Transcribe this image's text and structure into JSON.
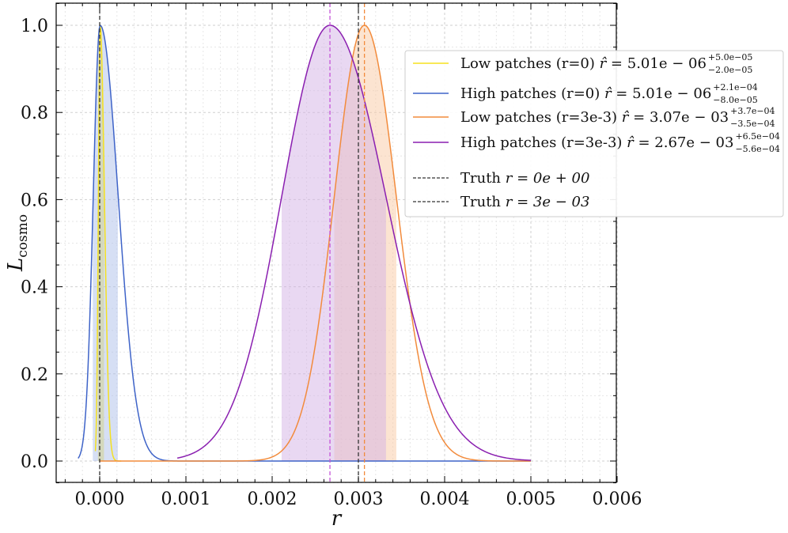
{
  "chart_data": {
    "type": "line",
    "title": "",
    "xlabel": "r",
    "ylabel_main": "L",
    "ylabel_sub": "cosmo",
    "xlim": [
      -0.0005,
      0.006
    ],
    "ylim": [
      -0.05,
      1.05
    ],
    "xticks": [
      0.0,
      0.001,
      0.002,
      0.003,
      0.004,
      0.005,
      0.006
    ],
    "xtick_labels": [
      "0.000",
      "0.001",
      "0.002",
      "0.003",
      "0.004",
      "0.005",
      "0.006"
    ],
    "yticks": [
      0.0,
      0.2,
      0.4,
      0.6,
      0.8,
      1.0
    ],
    "ytick_labels": [
      "0.0",
      "0.2",
      "0.4",
      "0.6",
      "0.8",
      "1.0"
    ],
    "grid": true,
    "legend_position": "upper-right",
    "series": [
      {
        "name": "Low patches (r=0)",
        "color": "#f5e11e",
        "peak": 5.01e-06,
        "sigma_low": 2e-05,
        "sigma_high": 5e-05,
        "x_min": -5e-05,
        "x_max": 0.00025,
        "band": [
          -2e-05,
          5e-05
        ],
        "band_color": "#f5e11e",
        "legend_value": "5.01e − 06",
        "legend_sup": "+5.0e−05",
        "legend_sub": "−2.0e−05"
      },
      {
        "name": "High patches (r=0)",
        "color": "#3e63c8",
        "peak": 5.01e-06,
        "sigma_low": 8e-05,
        "sigma_high": 0.00021,
        "x_min": -0.00025,
        "x_max": 0.005,
        "band": [
          -8e-05,
          0.00021
        ],
        "band_color": "#aebfe9",
        "legend_value": "5.01e − 06",
        "legend_sup": "+2.1e−04",
        "legend_sub": "−8.0e−05"
      },
      {
        "name": "Low patches (r=3e-3)",
        "color": "#f28b3c",
        "peak": 0.00307,
        "sigma_low": 0.00035,
        "sigma_high": 0.00037,
        "x_min": 0.0,
        "x_max": 0.005,
        "band": [
          0.00272,
          0.00344
        ],
        "band_color": "#f9c9a3",
        "legend_value": "3.07e − 03",
        "legend_sup": "+3.7e−04",
        "legend_sub": "−3.5e−04"
      },
      {
        "name": "High patches (r=3e-3)",
        "color": "#8a1fb0",
        "peak": 0.00267,
        "sigma_low": 0.00056,
        "sigma_high": 0.00065,
        "x_min": 0.0009,
        "x_max": 0.005,
        "band": [
          0.00211,
          0.00332
        ],
        "band_color": "#d3b2e6",
        "legend_value": "2.67e − 03",
        "legend_sup": "+6.5e−04",
        "legend_sub": "−5.6e−04"
      }
    ],
    "vlines": [
      {
        "x": 0.0,
        "color": "#333333",
        "style": "dashed",
        "role": "truth"
      },
      {
        "x": 0.003,
        "color": "#333333",
        "style": "dashed",
        "role": "truth"
      },
      {
        "x": 0.00307,
        "color": "#f28b3c",
        "style": "dashed",
        "role": "estimate"
      },
      {
        "x": 0.00267,
        "color": "#c455d8",
        "style": "dashed",
        "role": "estimate"
      }
    ],
    "legend_truth": [
      {
        "label": "Truth",
        "value": "0e + 00",
        "color": "#333333"
      },
      {
        "label": "Truth",
        "value": "3e − 03",
        "color": "#333333"
      }
    ]
  }
}
